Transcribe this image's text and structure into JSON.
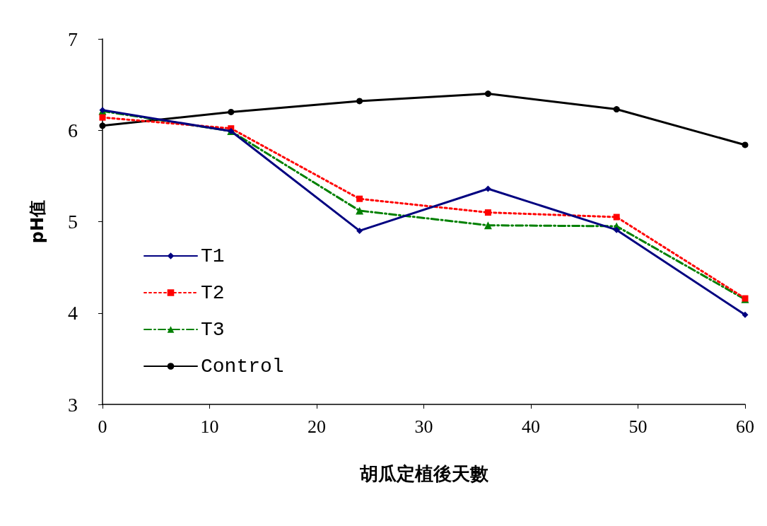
{
  "chart_data": {
    "type": "line",
    "xlabel": "胡瓜定植後天數",
    "ylabel": "pH值",
    "x": [
      0,
      12,
      24,
      36,
      48,
      60
    ],
    "xlim": [
      0,
      60
    ],
    "xticks": [
      0,
      10,
      20,
      30,
      40,
      50,
      60
    ],
    "ylim": [
      3,
      7
    ],
    "yticks": [
      3,
      4,
      5,
      6,
      7
    ],
    "grid": false,
    "legend": "left",
    "series": [
      {
        "name": "T1",
        "color": "#000080",
        "marker": "diamond",
        "line_style": "solid",
        "values": [
          6.22,
          5.99,
          4.9,
          5.36,
          4.91,
          3.98
        ]
      },
      {
        "name": "T2",
        "color": "#ff0000",
        "marker": "square",
        "line_style": "dotted",
        "values": [
          6.14,
          6.02,
          5.25,
          5.1,
          5.05,
          4.16
        ]
      },
      {
        "name": "T3",
        "color": "#008000",
        "marker": "triangle",
        "line_style": "dashed",
        "values": [
          6.21,
          5.99,
          5.12,
          4.96,
          4.95,
          4.15
        ]
      },
      {
        "name": "Control",
        "color": "#000000",
        "marker": "circle",
        "line_style": "solid",
        "values": [
          6.05,
          6.2,
          6.32,
          6.4,
          6.23,
          5.84
        ]
      }
    ]
  }
}
